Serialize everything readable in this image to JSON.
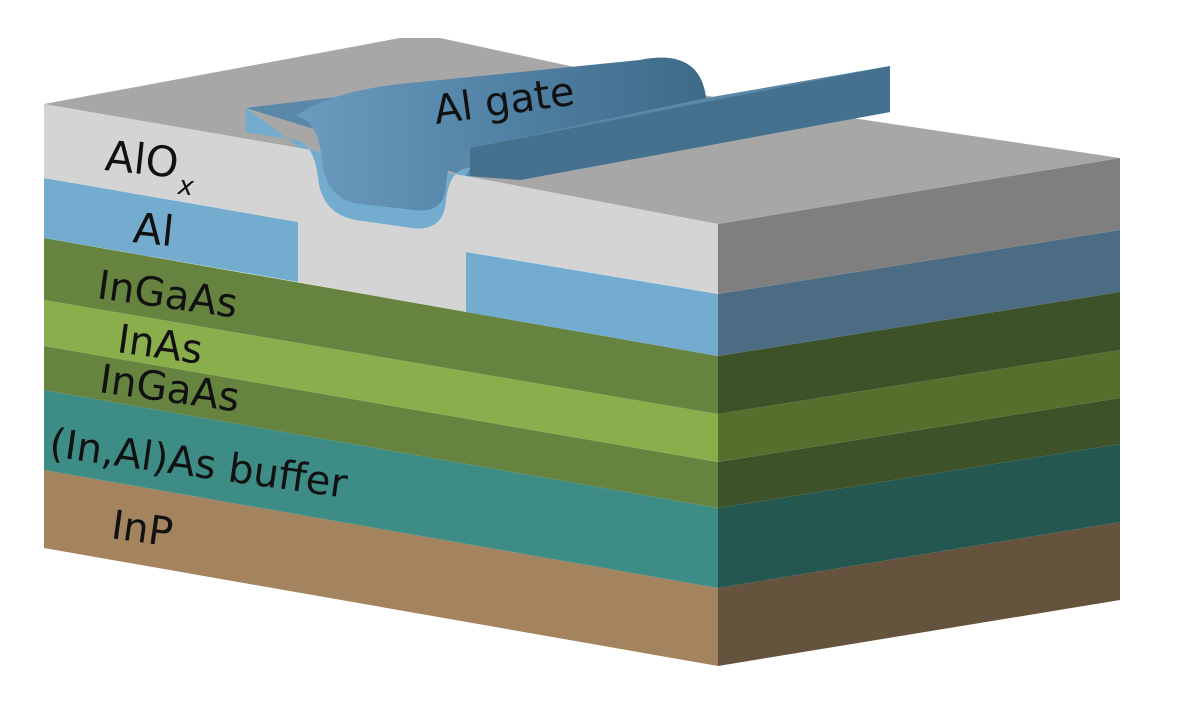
{
  "labels": {
    "alox": "AlO",
    "alox_sub": "x",
    "al": "Al",
    "ingaas_top": "InGaAs",
    "inas": "InAs",
    "ingaas_bottom": "InGaAs",
    "buffer": "(In,Al)As buffer",
    "inp": "InP",
    "gate": "Al gate"
  },
  "colors": {
    "inp_front": "#a3845f",
    "inp_side": "#66533d",
    "buffer_front": "#3e8c86",
    "buffer_side": "#24574f",
    "ingaas_front": "#66843f",
    "ingaas_side": "#3e5229",
    "inas_front": "#8bae4c",
    "inas_side": "#566f2d",
    "al_front": "#74accf",
    "al_side": "#4b6c82",
    "alox_front": "#d4d4d4",
    "alox_top": "#a7a7a7",
    "alox_side": "#7f7f7f",
    "gate_top": "#5a88a8",
    "gate_side": "#45718f"
  }
}
